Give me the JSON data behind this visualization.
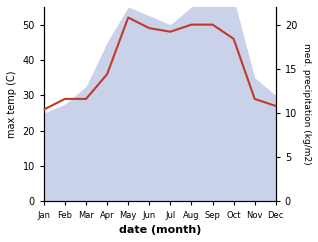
{
  "months": [
    "Jan",
    "Feb",
    "Mar",
    "Apr",
    "May",
    "Jun",
    "Jul",
    "Aug",
    "Sep",
    "Oct",
    "Nov",
    "Dec"
  ],
  "temperature": [
    26,
    29,
    29,
    36,
    52,
    49,
    48,
    50,
    50,
    46,
    29,
    27
  ],
  "precipitation": [
    10,
    11,
    13,
    18,
    22,
    21,
    20,
    22,
    23,
    23,
    14,
    12
  ],
  "temp_color": "#c0392b",
  "precip_fill_color": "#c5cde8",
  "precip_line_color": "#c5cde8",
  "temp_ylim": [
    0,
    55
  ],
  "precip_ylim": [
    0,
    22
  ],
  "temp_yticks": [
    0,
    10,
    20,
    30,
    40,
    50
  ],
  "precip_yticks": [
    0,
    5,
    10,
    15,
    20
  ],
  "ylabel_left": "max temp (C)",
  "ylabel_right": "med. precipitation (kg/m2)",
  "xlabel": "date (month)",
  "fig_width": 3.18,
  "fig_height": 2.42,
  "dpi": 100
}
